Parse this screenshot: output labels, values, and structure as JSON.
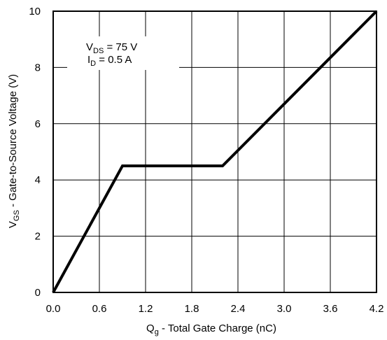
{
  "chart_data": {
    "type": "line",
    "title": "",
    "xlabel": {
      "main": "Q",
      "sub": "g",
      "rest": " - Total Gate Charge (nC)"
    },
    "ylabel": {
      "main": "V",
      "sub": "GS",
      "rest": " - Gate-to-Source Voltage (V)"
    },
    "xlim": [
      0.0,
      4.2
    ],
    "ylim": [
      0,
      10
    ],
    "x_ticks": [
      0.0,
      0.6,
      1.2,
      1.8,
      2.4,
      3.0,
      3.6,
      4.2
    ],
    "x_tick_labels": [
      "0.0",
      "0.6",
      "1.2",
      "1.8",
      "2.4",
      "3.0",
      "3.6",
      "4.2"
    ],
    "y_ticks": [
      0,
      2,
      4,
      6,
      8,
      10
    ],
    "y_tick_labels": [
      "0",
      "2",
      "4",
      "6",
      "8",
      "10"
    ],
    "grid": true,
    "series": [
      {
        "x": [
          0.0,
          0.9,
          2.2,
          4.2
        ],
        "y": [
          0.0,
          4.5,
          4.5,
          10.0
        ],
        "color": "#000000"
      }
    ],
    "annotations": [
      {
        "main": "V",
        "sub": "DS",
        "rest": " = 75  V"
      },
      {
        "main": "I",
        "sub": "D",
        "rest": " = 0.5 A"
      }
    ]
  }
}
